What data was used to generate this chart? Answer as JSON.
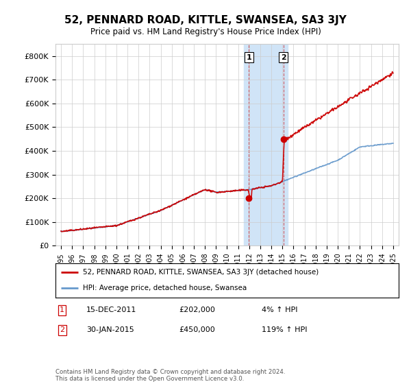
{
  "title": "52, PENNARD ROAD, KITTLE, SWANSEA, SA3 3JY",
  "subtitle": "Price paid vs. HM Land Registry's House Price Index (HPI)",
  "legend_label_red": "52, PENNARD ROAD, KITTLE, SWANSEA, SA3 3JY (detached house)",
  "legend_label_blue": "HPI: Average price, detached house, Swansea",
  "annotation1_date": "15-DEC-2011",
  "annotation1_price": "£202,000",
  "annotation1_hpi": "4% ↑ HPI",
  "annotation2_date": "30-JAN-2015",
  "annotation2_price": "£450,000",
  "annotation2_hpi": "119% ↑ HPI",
  "footnote": "Contains HM Land Registry data © Crown copyright and database right 2024.\nThis data is licensed under the Open Government Licence v3.0.",
  "red_color": "#cc0000",
  "blue_color": "#6699cc",
  "highlight_color": "#d0e4f7",
  "background_color": "#ffffff",
  "grid_color": "#cccccc",
  "ylim": [
    0,
    850000
  ],
  "yticks": [
    0,
    100000,
    200000,
    300000,
    400000,
    500000,
    600000,
    700000,
    800000
  ],
  "ytick_labels": [
    "£0",
    "£100K",
    "£200K",
    "£300K",
    "£400K",
    "£500K",
    "£600K",
    "£700K",
    "£800K"
  ],
  "sale1_x": 2011.96,
  "sale1_y": 202000,
  "sale2_x": 2015.08,
  "sale2_y": 450000,
  "highlight_x1": 2011.5,
  "highlight_x2": 2015.5,
  "xmin": 1994.5,
  "xmax": 2025.5
}
